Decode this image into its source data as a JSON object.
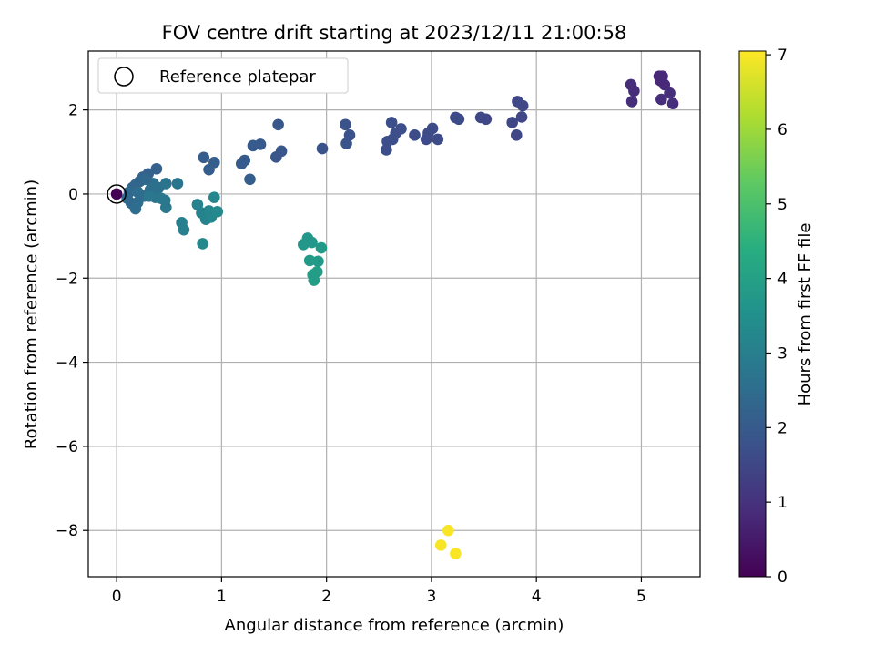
{
  "chart_data": {
    "type": "scatter",
    "title": "FOV centre drift starting at 2023/12/11 21:00:58",
    "xlabel": "Angular distance from reference (arcmin)",
    "ylabel": "Rotation from reference (arcmin)",
    "xlim": [
      -0.27,
      5.56
    ],
    "ylim": [
      -9.1,
      3.4
    ],
    "xticks": [
      0,
      1,
      2,
      3,
      4,
      5
    ],
    "yticks": [
      2,
      0,
      -2,
      -4,
      -6,
      -8
    ],
    "xtick_labels": [
      "0",
      "1",
      "2",
      "3",
      "4",
      "5"
    ],
    "ytick_labels": [
      "2",
      "0",
      "−2",
      "−4",
      "−6",
      "−8"
    ],
    "grid": true,
    "legend": {
      "placement": "top-left",
      "entries": [
        "Reference platepar"
      ]
    },
    "colorbar": {
      "label": "Hours from first FF file",
      "range": [
        0,
        7.05
      ],
      "ticks": [
        0,
        1,
        2,
        3,
        4,
        5,
        6,
        7
      ],
      "tick_labels": [
        "0",
        "1",
        "2",
        "3",
        "4",
        "5",
        "6",
        "7"
      ],
      "colormap": "viridis"
    },
    "reference_point": {
      "x": 0,
      "y": 0
    },
    "points": [
      {
        "x": 4.9,
        "y": 2.6,
        "h": 0.9
      },
      {
        "x": 4.93,
        "y": 2.45,
        "h": 0.9
      },
      {
        "x": 4.91,
        "y": 2.2,
        "h": 0.9
      },
      {
        "x": 5.17,
        "y": 2.8,
        "h": 0.8
      },
      {
        "x": 5.2,
        "y": 2.8,
        "h": 0.8
      },
      {
        "x": 5.18,
        "y": 2.7,
        "h": 0.8
      },
      {
        "x": 5.22,
        "y": 2.6,
        "h": 0.8
      },
      {
        "x": 5.19,
        "y": 2.25,
        "h": 0.9
      },
      {
        "x": 5.27,
        "y": 2.4,
        "h": 0.9
      },
      {
        "x": 5.3,
        "y": 2.15,
        "h": 0.9
      },
      {
        "x": 3.82,
        "y": 2.2,
        "h": 1.5
      },
      {
        "x": 3.87,
        "y": 2.1,
        "h": 1.5
      },
      {
        "x": 3.86,
        "y": 1.83,
        "h": 1.5
      },
      {
        "x": 3.77,
        "y": 1.7,
        "h": 1.5
      },
      {
        "x": 3.81,
        "y": 1.4,
        "h": 1.5
      },
      {
        "x": 3.47,
        "y": 1.82,
        "h": 1.5
      },
      {
        "x": 3.52,
        "y": 1.78,
        "h": 1.5
      },
      {
        "x": 3.23,
        "y": 1.82,
        "h": 1.6
      },
      {
        "x": 3.26,
        "y": 1.78,
        "h": 1.6
      },
      {
        "x": 3.01,
        "y": 1.56,
        "h": 1.6
      },
      {
        "x": 2.97,
        "y": 1.45,
        "h": 1.6
      },
      {
        "x": 2.95,
        "y": 1.3,
        "h": 1.6
      },
      {
        "x": 3.06,
        "y": 1.3,
        "h": 1.6
      },
      {
        "x": 2.84,
        "y": 1.4,
        "h": 1.6
      },
      {
        "x": 2.71,
        "y": 1.55,
        "h": 1.7
      },
      {
        "x": 2.62,
        "y": 1.7,
        "h": 1.7
      },
      {
        "x": 2.66,
        "y": 1.45,
        "h": 1.7
      },
      {
        "x": 2.58,
        "y": 1.25,
        "h": 1.7
      },
      {
        "x": 2.63,
        "y": 1.3,
        "h": 1.7
      },
      {
        "x": 2.57,
        "y": 1.05,
        "h": 1.7
      },
      {
        "x": 2.18,
        "y": 1.65,
        "h": 1.8
      },
      {
        "x": 2.22,
        "y": 1.4,
        "h": 1.8
      },
      {
        "x": 2.19,
        "y": 1.2,
        "h": 1.8
      },
      {
        "x": 1.96,
        "y": 1.08,
        "h": 1.8
      },
      {
        "x": 1.54,
        "y": 1.65,
        "h": 1.9
      },
      {
        "x": 1.57,
        "y": 1.02,
        "h": 1.9
      },
      {
        "x": 1.52,
        "y": 0.88,
        "h": 1.9
      },
      {
        "x": 1.3,
        "y": 1.15,
        "h": 2.0
      },
      {
        "x": 1.37,
        "y": 1.18,
        "h": 2.0
      },
      {
        "x": 1.22,
        "y": 0.8,
        "h": 2.0
      },
      {
        "x": 1.19,
        "y": 0.72,
        "h": 2.0
      },
      {
        "x": 1.27,
        "y": 0.35,
        "h": 2.1
      },
      {
        "x": 0.83,
        "y": 0.87,
        "h": 2.1
      },
      {
        "x": 0.93,
        "y": 0.75,
        "h": 2.1
      },
      {
        "x": 0.88,
        "y": 0.58,
        "h": 2.1
      },
      {
        "x": 0.38,
        "y": 0.6,
        "h": 2.2
      },
      {
        "x": 0.3,
        "y": 0.48,
        "h": 2.2
      },
      {
        "x": 0.25,
        "y": 0.4,
        "h": 2.2
      },
      {
        "x": 0.22,
        "y": 0.3,
        "h": 2.3
      },
      {
        "x": 0.18,
        "y": 0.22,
        "h": 2.3
      },
      {
        "x": 0.15,
        "y": 0.15,
        "h": 2.3
      },
      {
        "x": 0.12,
        "y": 0.05,
        "h": 2.4
      },
      {
        "x": 0.1,
        "y": -0.1,
        "h": 2.4
      },
      {
        "x": 0.14,
        "y": -0.22,
        "h": 2.4
      },
      {
        "x": 0.18,
        "y": -0.35,
        "h": 2.5
      },
      {
        "x": 0.2,
        "y": -0.2,
        "h": 2.5
      },
      {
        "x": 0.26,
        "y": -0.05,
        "h": 2.5
      },
      {
        "x": 0.32,
        "y": 0.1,
        "h": 2.6
      },
      {
        "x": 0.35,
        "y": 0.25,
        "h": 2.6
      },
      {
        "x": 0.4,
        "y": 0.15,
        "h": 2.6
      },
      {
        "x": 0.37,
        "y": -0.08,
        "h": 2.7
      },
      {
        "x": 0.47,
        "y": 0.25,
        "h": 2.7
      },
      {
        "x": 0.58,
        "y": 0.25,
        "h": 2.7
      },
      {
        "x": 0.46,
        "y": -0.15,
        "h": 2.8
      },
      {
        "x": 0.47,
        "y": -0.32,
        "h": 2.8
      },
      {
        "x": 0.42,
        "y": -0.1,
        "h": 2.8
      },
      {
        "x": 0.31,
        "y": -0.05,
        "h": 2.8
      },
      {
        "x": 0.28,
        "y": 0.35,
        "h": 2.4
      },
      {
        "x": 0.2,
        "y": 0.05,
        "h": 2.5
      },
      {
        "x": 0.62,
        "y": -0.68,
        "h": 3.0
      },
      {
        "x": 0.64,
        "y": -0.85,
        "h": 3.0
      },
      {
        "x": 0.77,
        "y": -0.25,
        "h": 3.1
      },
      {
        "x": 0.81,
        "y": -0.45,
        "h": 3.1
      },
      {
        "x": 0.85,
        "y": -0.6,
        "h": 3.1
      },
      {
        "x": 0.88,
        "y": -0.4,
        "h": 3.2
      },
      {
        "x": 0.9,
        "y": -0.55,
        "h": 3.2
      },
      {
        "x": 0.93,
        "y": -0.08,
        "h": 3.2
      },
      {
        "x": 0.96,
        "y": -0.42,
        "h": 3.3
      },
      {
        "x": 0.82,
        "y": -1.18,
        "h": 3.3
      },
      {
        "x": 1.82,
        "y": -1.05,
        "h": 3.7
      },
      {
        "x": 1.78,
        "y": -1.2,
        "h": 3.7
      },
      {
        "x": 1.86,
        "y": -1.15,
        "h": 3.7
      },
      {
        "x": 1.95,
        "y": -1.28,
        "h": 3.8
      },
      {
        "x": 1.84,
        "y": -1.58,
        "h": 3.8
      },
      {
        "x": 1.92,
        "y": -1.6,
        "h": 3.8
      },
      {
        "x": 1.91,
        "y": -1.85,
        "h": 3.9
      },
      {
        "x": 1.87,
        "y": -1.92,
        "h": 3.9
      },
      {
        "x": 1.88,
        "y": -2.05,
        "h": 3.9
      },
      {
        "x": 3.16,
        "y": -8.0,
        "h": 7.0
      },
      {
        "x": 3.09,
        "y": -8.35,
        "h": 7.0
      },
      {
        "x": 3.23,
        "y": -8.55,
        "h": 7.0
      }
    ]
  }
}
